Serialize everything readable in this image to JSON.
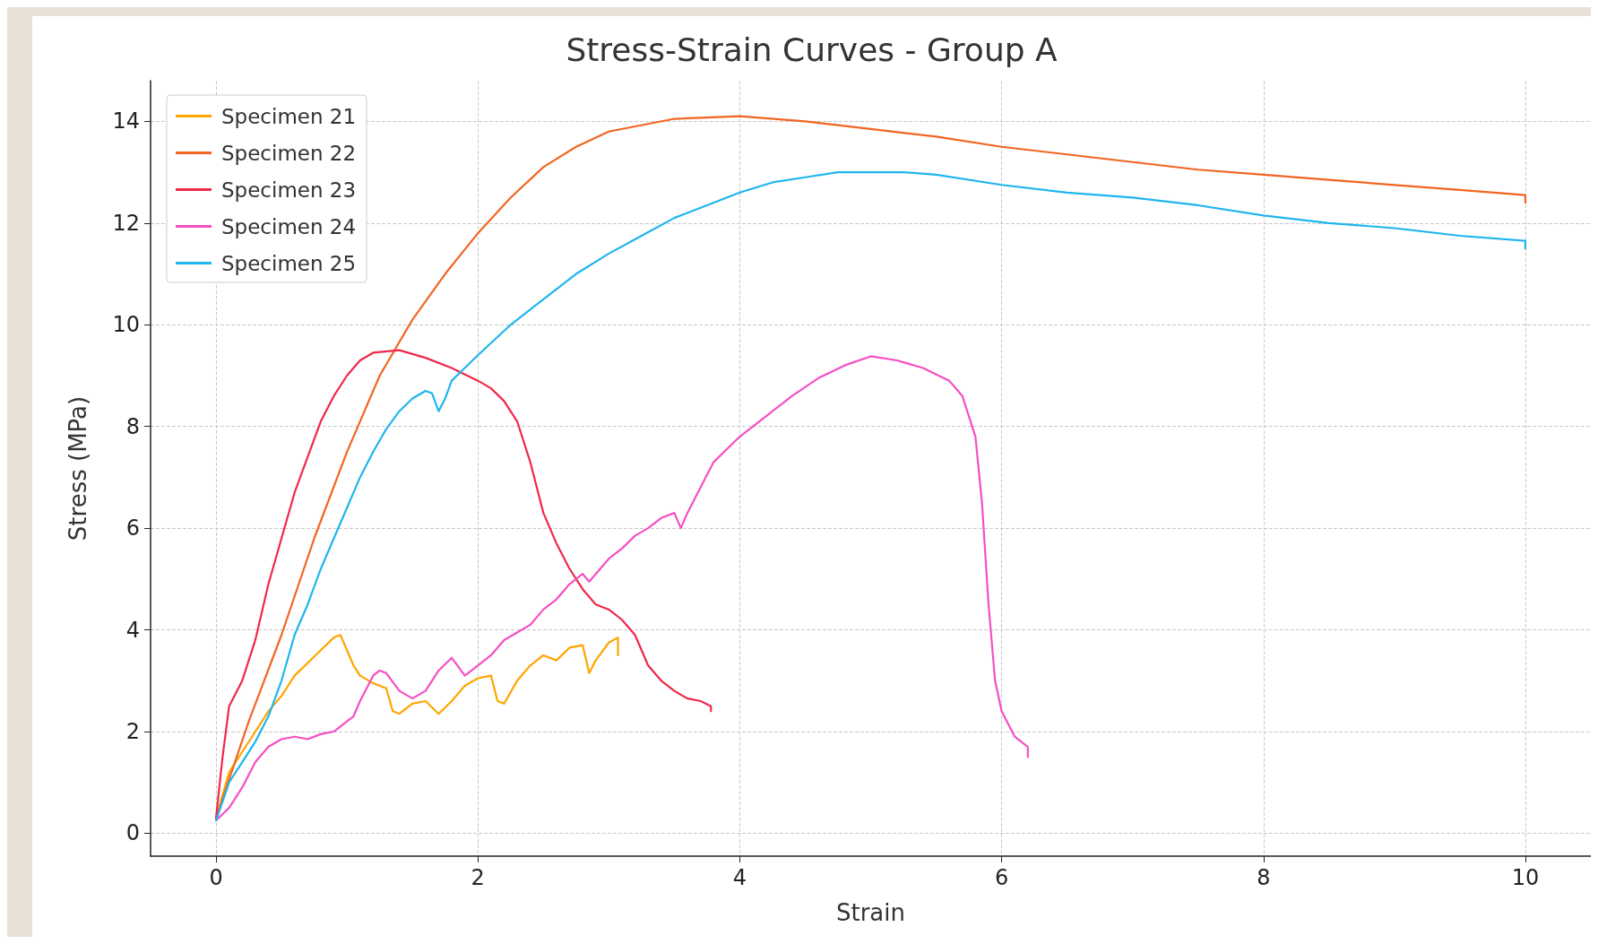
{
  "chart_data": {
    "type": "line",
    "title": "Stress-Strain Curves - Group A",
    "xlabel": "Strain",
    "ylabel": "Stress (MPa)",
    "xlim": [
      -0.5,
      10.5
    ],
    "xticks": [
      0,
      2,
      4,
      6,
      8,
      10
    ],
    "ylim": [
      -0.45,
      14.8
    ],
    "yticks": [
      0,
      2,
      4,
      6,
      8,
      10,
      12,
      14
    ],
    "grid": true,
    "legend": "top left",
    "marker": "none",
    "line_style": "solid",
    "series": [
      {
        "name": "Specimen 21",
        "color": "#ffa500",
        "x": [
          0,
          0.1,
          0.2,
          0.3,
          0.4,
          0.5,
          0.6,
          0.7,
          0.8,
          0.9,
          0.95,
          1.0,
          1.05,
          1.1,
          1.2,
          1.3,
          1.35,
          1.4,
          1.5,
          1.6,
          1.7,
          1.8,
          1.9,
          2.0,
          2.1,
          2.15,
          2.2,
          2.3,
          2.4,
          2.5,
          2.6,
          2.7,
          2.8,
          2.85,
          2.9,
          3.0,
          3.07,
          3.07
        ],
        "values": [
          0.3,
          1.2,
          1.6,
          2.0,
          2.4,
          2.7,
          3.1,
          3.35,
          3.6,
          3.85,
          3.9,
          3.6,
          3.3,
          3.1,
          2.95,
          2.85,
          2.4,
          2.35,
          2.55,
          2.6,
          2.35,
          2.6,
          2.9,
          3.05,
          3.1,
          2.6,
          2.55,
          3.0,
          3.3,
          3.5,
          3.4,
          3.65,
          3.7,
          3.15,
          3.4,
          3.75,
          3.85,
          3.5
        ]
      },
      {
        "name": "Specimen 22",
        "color": "#f26522",
        "x": [
          0,
          0.25,
          0.5,
          0.75,
          1,
          1.25,
          1.5,
          1.75,
          2,
          2.25,
          2.5,
          2.75,
          3,
          3.5,
          4,
          4.5,
          5,
          5.5,
          6,
          6.5,
          7,
          7.5,
          8,
          8.5,
          9,
          9.5,
          10,
          10
        ],
        "values": [
          0.3,
          2.2,
          3.9,
          5.8,
          7.5,
          9.0,
          10.1,
          11.0,
          11.8,
          12.5,
          13.1,
          13.5,
          13.8,
          14.05,
          14.1,
          14.0,
          13.85,
          13.7,
          13.5,
          13.35,
          13.2,
          13.05,
          12.95,
          12.85,
          12.75,
          12.65,
          12.55,
          12.4
        ]
      },
      {
        "name": "Specimen 23",
        "color": "#f0284a",
        "x": [
          0,
          0.05,
          0.1,
          0.2,
          0.3,
          0.4,
          0.5,
          0.6,
          0.7,
          0.8,
          0.9,
          1.0,
          1.1,
          1.2,
          1.4,
          1.6,
          1.8,
          2.0,
          2.1,
          2.2,
          2.3,
          2.4,
          2.5,
          2.6,
          2.7,
          2.8,
          2.9,
          3.0,
          3.1,
          3.2,
          3.3,
          3.4,
          3.5,
          3.6,
          3.7,
          3.78,
          3.78
        ],
        "values": [
          0.3,
          1.5,
          2.5,
          3.0,
          3.8,
          4.9,
          5.8,
          6.7,
          7.4,
          8.1,
          8.6,
          9.0,
          9.3,
          9.45,
          9.5,
          9.35,
          9.15,
          8.9,
          8.75,
          8.5,
          8.1,
          7.3,
          6.3,
          5.7,
          5.2,
          4.8,
          4.5,
          4.4,
          4.2,
          3.9,
          3.3,
          3.0,
          2.8,
          2.65,
          2.6,
          2.5,
          2.4
        ]
      },
      {
        "name": "Specimen 24",
        "color": "#f54fc4",
        "x": [
          0,
          0.1,
          0.2,
          0.3,
          0.4,
          0.5,
          0.6,
          0.7,
          0.8,
          0.9,
          1.0,
          1.05,
          1.1,
          1.2,
          1.25,
          1.3,
          1.4,
          1.5,
          1.6,
          1.7,
          1.8,
          1.9,
          2.0,
          2.1,
          2.2,
          2.3,
          2.4,
          2.5,
          2.6,
          2.7,
          2.8,
          2.85,
          2.9,
          3.0,
          3.1,
          3.2,
          3.3,
          3.4,
          3.5,
          3.55,
          3.6,
          3.7,
          3.8,
          4.0,
          4.2,
          4.4,
          4.6,
          4.8,
          5.0,
          5.2,
          5.4,
          5.6,
          5.7,
          5.8,
          5.85,
          5.9,
          5.95,
          6.0,
          6.1,
          6.2,
          6.2
        ],
        "values": [
          0.25,
          0.5,
          0.9,
          1.4,
          1.7,
          1.85,
          1.9,
          1.85,
          1.95,
          2.0,
          2.2,
          2.3,
          2.6,
          3.1,
          3.2,
          3.15,
          2.8,
          2.65,
          2.8,
          3.2,
          3.45,
          3.1,
          3.3,
          3.5,
          3.8,
          3.95,
          4.1,
          4.4,
          4.6,
          4.9,
          5.1,
          4.95,
          5.1,
          5.4,
          5.6,
          5.85,
          6.0,
          6.2,
          6.3,
          6.0,
          6.3,
          6.8,
          7.3,
          7.8,
          8.2,
          8.6,
          8.95,
          9.2,
          9.38,
          9.3,
          9.15,
          8.9,
          8.6,
          7.8,
          6.5,
          4.5,
          3.0,
          2.4,
          1.9,
          1.7,
          1.5
        ]
      },
      {
        "name": "Specimen 25",
        "color": "#1fb5ee",
        "x": [
          0,
          0.1,
          0.2,
          0.3,
          0.4,
          0.5,
          0.6,
          0.7,
          0.8,
          0.9,
          1.0,
          1.1,
          1.2,
          1.3,
          1.4,
          1.5,
          1.6,
          1.65,
          1.7,
          1.75,
          1.8,
          2.0,
          2.25,
          2.5,
          2.75,
          3,
          3.25,
          3.5,
          3.75,
          4,
          4.25,
          4.5,
          4.75,
          5,
          5.25,
          5.5,
          6,
          6.5,
          7,
          7.5,
          8,
          8.5,
          9,
          9.5,
          10,
          10
        ],
        "values": [
          0.25,
          1.0,
          1.4,
          1.8,
          2.3,
          3.0,
          3.9,
          4.5,
          5.2,
          5.8,
          6.4,
          7.0,
          7.5,
          7.95,
          8.3,
          8.55,
          8.7,
          8.65,
          8.3,
          8.55,
          8.9,
          9.4,
          10.0,
          10.5,
          11.0,
          11.4,
          11.75,
          12.1,
          12.35,
          12.6,
          12.8,
          12.9,
          13.0,
          13.0,
          13.0,
          12.95,
          12.75,
          12.6,
          12.5,
          12.35,
          12.15,
          12.0,
          11.9,
          11.75,
          11.65,
          11.5
        ]
      }
    ]
  }
}
